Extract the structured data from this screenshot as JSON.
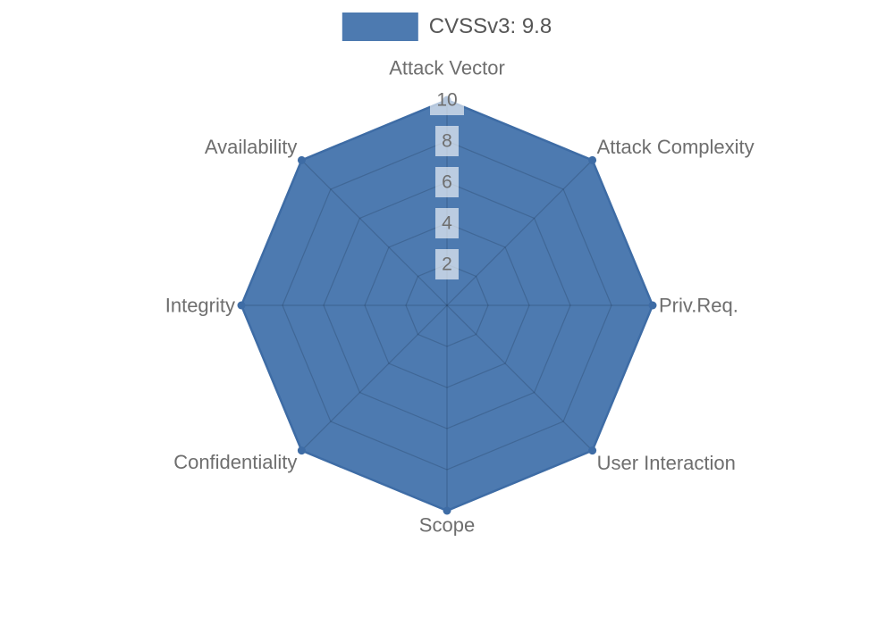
{
  "page": {
    "background": "#ffffff"
  },
  "legend": {
    "position": "top",
    "items": [
      {
        "label": "CVSSv3: 9.8",
        "swatch_color": "#4d7ab0"
      }
    ]
  },
  "chart_data": {
    "type": "radar",
    "title": "",
    "categories": [
      "Attack Vector",
      "Attack Complexity",
      "Priv.Req.",
      "User Interaction",
      "Scope",
      "Confidentiality",
      "Integrity",
      "Availability"
    ],
    "series": [
      {
        "name": "CVSSv3: 9.8",
        "values": [
          10,
          10,
          10,
          10,
          10,
          10,
          10,
          10
        ]
      }
    ],
    "ticks": [
      2,
      4,
      6,
      8,
      10
    ],
    "rlim": [
      0,
      10
    ],
    "grid": true,
    "legend_position": "top",
    "colors": {
      "fill": "#4d7ab0",
      "stroke": "#3e6ca5",
      "point": "#3e6ca5",
      "grid_line": "rgba(20,35,60,0.22)",
      "axis_label": "#6e6e6e",
      "tick_label": "#6e6e6e",
      "tick_bg": "rgba(255,255,255,0.62)",
      "legend_text": "#565656"
    }
  }
}
